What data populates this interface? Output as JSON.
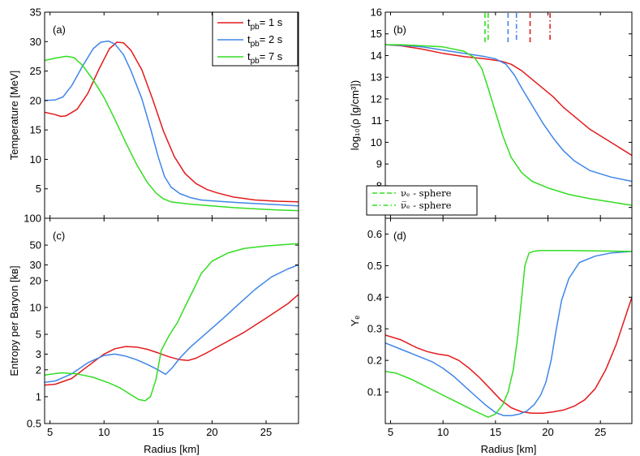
{
  "colors": {
    "t1": "#e41a1c",
    "t2": "#3f86e8",
    "t7": "#33dd22"
  },
  "legend": {
    "series": [
      {
        "prefix": "t",
        "sub": "pb",
        "suffix": "= 1 s",
        "color": "#e41a1c"
      },
      {
        "prefix": "t",
        "sub": "pb",
        "suffix": "= 2 s",
        "color": "#3f86e8"
      },
      {
        "prefix": "t",
        "sub": "pb",
        "suffix": "= 7 s",
        "color": "#33dd22"
      }
    ],
    "spheres": [
      {
        "label": "νₑ - sphere",
        "style": "dashed"
      },
      {
        "label": "ν̅ₑ - sphere",
        "style": "dashdot"
      }
    ]
  },
  "chart_data": [
    {
      "id": "a",
      "type": "line",
      "tag": "(a)",
      "xlabel": "",
      "ylabel": "Temperature [MeV]",
      "xlim": [
        4.5,
        28
      ],
      "ylim": [
        0,
        35
      ],
      "yscale": "linear",
      "xticks": [
        5,
        10,
        15,
        20,
        25
      ],
      "xticklabels": [],
      "yticks": [
        5,
        10,
        15,
        20,
        25,
        30,
        35
      ],
      "yticklabels": [
        "5",
        "10",
        "15",
        "20",
        "25",
        "30",
        "35"
      ],
      "series": [
        {
          "name": "t_pb = 1 s",
          "color": "#e41a1c",
          "x": [
            4.5,
            5.5,
            6,
            6.5,
            7.5,
            8.5,
            9.5,
            10.5,
            11.2,
            11.8,
            12.5,
            13.5,
            14.5,
            15.5,
            16.5,
            17.5,
            18.5,
            19.5,
            20.5,
            22,
            24,
            26,
            28
          ],
          "y": [
            18,
            17.6,
            17.3,
            17.4,
            18.5,
            21.2,
            25.2,
            28.8,
            29.9,
            29.8,
            28.5,
            25.2,
            20.2,
            14.8,
            10.5,
            7.6,
            5.9,
            4.9,
            4.3,
            3.6,
            3.1,
            2.9,
            2.8
          ]
        },
        {
          "name": "t_pb = 2 s",
          "color": "#3f86e8",
          "x": [
            4.5,
            5.5,
            6.2,
            7,
            8,
            9,
            9.7,
            10.4,
            11,
            11.8,
            12.5,
            13.5,
            14.3,
            15,
            15.6,
            16.2,
            17,
            18,
            19,
            20.5,
            22,
            24,
            26,
            28
          ],
          "y": [
            20,
            20.1,
            20.6,
            22.5,
            25.8,
            28.8,
            29.9,
            30.1,
            29.6,
            27.8,
            25,
            20.3,
            15.3,
            10.5,
            7.1,
            5.3,
            4.2,
            3.5,
            3.1,
            2.9,
            2.7,
            2.5,
            2.3,
            2.1
          ]
        },
        {
          "name": "t_pb = 7 s",
          "color": "#33dd22",
          "x": [
            4.5,
            5.5,
            6.5,
            7.2,
            8,
            9,
            10,
            11,
            12,
            13,
            14,
            14.8,
            15.5,
            16.2,
            17,
            18,
            20,
            22,
            24,
            26,
            28
          ],
          "y": [
            26.8,
            27.2,
            27.5,
            27.3,
            26,
            23.5,
            20.5,
            16.8,
            12.9,
            9.2,
            6.1,
            4.3,
            3.3,
            2.8,
            2.6,
            2.4,
            2.1,
            1.8,
            1.6,
            1.4,
            1.3
          ]
        }
      ]
    },
    {
      "id": "b",
      "type": "line",
      "tag": "(b)",
      "xlabel": "",
      "ylabel": "log₁₀(ρ [g/cm³])",
      "xlim": [
        4.5,
        28
      ],
      "ylim": [
        6.5,
        16
      ],
      "yscale": "linear",
      "xticks": [
        5,
        10,
        15,
        20,
        25
      ],
      "xticklabels": [],
      "yticks": [
        7,
        8,
        9,
        10,
        11,
        12,
        13,
        14,
        15,
        16
      ],
      "yticklabels": [
        "7",
        "8",
        "9",
        "10",
        "11",
        "12",
        "13",
        "14",
        "15",
        "16"
      ],
      "series": [
        {
          "name": "t_pb = 1 s",
          "color": "#e41a1c",
          "x": [
            4.5,
            6,
            8,
            10,
            12,
            14,
            15.5,
            16.5,
            17.5,
            18.5,
            19.5,
            20.5,
            21.5,
            22.5,
            24,
            26,
            28
          ],
          "y": [
            14.5,
            14.45,
            14.3,
            14.1,
            13.95,
            13.85,
            13.75,
            13.6,
            13.3,
            12.9,
            12.5,
            12.1,
            11.6,
            11.2,
            10.6,
            10.0,
            9.4
          ]
        },
        {
          "name": "t_pb = 2 s",
          "color": "#3f86e8",
          "x": [
            4.5,
            6,
            8,
            10,
            12,
            14,
            15,
            16,
            16.8,
            17.5,
            18.5,
            19.5,
            20.5,
            21.5,
            22.5,
            24,
            26,
            28
          ],
          "y": [
            14.5,
            14.47,
            14.4,
            14.25,
            14.1,
            13.95,
            13.85,
            13.6,
            13.1,
            12.5,
            11.7,
            10.9,
            10.2,
            9.6,
            9.15,
            8.7,
            8.4,
            8.2
          ]
        },
        {
          "name": "t_pb = 7 s",
          "color": "#33dd22",
          "x": [
            4.5,
            6,
            8,
            10,
            12,
            13,
            13.7,
            14.3,
            15,
            15.7,
            16.5,
            17.5,
            18.5,
            20,
            22,
            24,
            26,
            28
          ],
          "y": [
            14.5,
            14.5,
            14.45,
            14.4,
            14.2,
            13.9,
            13.4,
            12.5,
            11.4,
            10.3,
            9.3,
            8.6,
            8.2,
            7.9,
            7.6,
            7.4,
            7.25,
            7.1
          ]
        }
      ],
      "sphere_markers": [
        {
          "series": "t_pb = 7 s",
          "nu_e": 14.0,
          "nubar_e": 14.3,
          "color": "#33dd22"
        },
        {
          "series": "t_pb = 2 s",
          "nu_e": 16.2,
          "nubar_e": 17.0,
          "color": "#3f86e8"
        },
        {
          "series": "t_pb = 1 s",
          "nu_e": 18.3,
          "nubar_e": 20.2,
          "color": "#e41a1c"
        }
      ]
    },
    {
      "id": "c",
      "type": "line",
      "tag": "(c)",
      "xlabel": "Radius [km]",
      "ylabel": "Entropy per Baryon [kʙ]",
      "xlim": [
        4.5,
        28
      ],
      "ylim": [
        0.5,
        100
      ],
      "yscale": "log",
      "xticks": [
        5,
        10,
        15,
        20,
        25
      ],
      "xticklabels": [
        "5",
        "10",
        "15",
        "20",
        "25"
      ],
      "yticks": [
        0.5,
        1,
        2,
        3,
        5,
        10,
        20,
        30,
        50,
        100
      ],
      "yticklabels": [
        "0.5",
        "1",
        "2",
        "3",
        "5",
        "10",
        "20",
        "30",
        "50",
        "100"
      ],
      "series": [
        {
          "name": "t_pb = 1 s",
          "color": "#e41a1c",
          "x": [
            4.5,
            5.5,
            7,
            8.5,
            10,
            11,
            12,
            13,
            14,
            15,
            16,
            17,
            17.8,
            18.5,
            19.5,
            21,
            23,
            25,
            27,
            28
          ],
          "y": [
            1.35,
            1.38,
            1.6,
            2.2,
            3.0,
            3.45,
            3.65,
            3.6,
            3.4,
            3.1,
            2.8,
            2.6,
            2.55,
            2.7,
            3.1,
            3.9,
            5.3,
            7.6,
            11,
            14
          ]
        },
        {
          "name": "t_pb = 2 s",
          "color": "#3f86e8",
          "x": [
            4.5,
            5.5,
            7,
            8.5,
            10,
            11,
            12,
            13,
            14,
            15,
            15.7,
            16.3,
            17,
            18,
            19.5,
            21,
            22.5,
            24,
            25.5,
            27,
            28
          ],
          "y": [
            1.45,
            1.5,
            1.8,
            2.4,
            2.9,
            3.0,
            2.85,
            2.6,
            2.3,
            2.0,
            1.78,
            2.1,
            2.7,
            3.6,
            5.2,
            7.5,
            11,
            16,
            22,
            27,
            30
          ]
        },
        {
          "name": "t_pb = 7 s",
          "color": "#33dd22",
          "x": [
            4.5,
            6,
            7.5,
            9,
            10.5,
            11.5,
            12.5,
            13.2,
            13.8,
            14.3,
            14.8,
            15.3,
            16,
            16.8,
            17.5,
            18.3,
            19,
            20,
            21.5,
            23,
            25,
            28
          ],
          "y": [
            1.75,
            1.85,
            1.8,
            1.65,
            1.42,
            1.25,
            1.05,
            0.93,
            0.9,
            1.0,
            1.55,
            3.3,
            4.8,
            6.8,
            10.2,
            16,
            24,
            33,
            41,
            46,
            49,
            52
          ]
        }
      ]
    },
    {
      "id": "d",
      "type": "line",
      "tag": "(d)",
      "xlabel": "Radius [km]",
      "ylabel": "Yₑ",
      "xlim": [
        4.5,
        28
      ],
      "ylim": [
        0,
        0.65
      ],
      "yscale": "linear",
      "xticks": [
        5,
        10,
        15,
        20,
        25
      ],
      "xticklabels": [
        "5",
        "10",
        "15",
        "20",
        "25"
      ],
      "yticks": [
        0.1,
        0.2,
        0.3,
        0.4,
        0.5,
        0.6
      ],
      "yticklabels": [
        "0.1",
        "0.2",
        "0.3",
        "0.4",
        "0.5",
        "0.6"
      ],
      "series": [
        {
          "name": "t_pb = 1 s",
          "color": "#e41a1c",
          "x": [
            4.5,
            6,
            7.5,
            8.5,
            9.5,
            10.5,
            11.5,
            12.5,
            13.5,
            14.5,
            15.5,
            16.5,
            17.5,
            18.5,
            19.5,
            20.5,
            21.5,
            22.5,
            23.5,
            24.5,
            25.5,
            26.5,
            27.3,
            28
          ],
          "y": [
            0.28,
            0.265,
            0.24,
            0.228,
            0.22,
            0.215,
            0.2,
            0.175,
            0.145,
            0.11,
            0.075,
            0.05,
            0.037,
            0.033,
            0.033,
            0.037,
            0.043,
            0.055,
            0.075,
            0.11,
            0.17,
            0.25,
            0.33,
            0.4
          ]
        },
        {
          "name": "t_pb = 2 s",
          "color": "#3f86e8",
          "x": [
            4.5,
            6,
            7.5,
            9,
            10,
            11,
            12,
            13,
            14,
            15,
            15.8,
            16.5,
            17.3,
            18,
            18.7,
            19.3,
            19.8,
            20.3,
            20.8,
            21.3,
            22,
            23,
            24.5,
            26,
            28
          ],
          "y": [
            0.255,
            0.235,
            0.215,
            0.195,
            0.175,
            0.15,
            0.12,
            0.09,
            0.06,
            0.035,
            0.025,
            0.025,
            0.03,
            0.04,
            0.06,
            0.09,
            0.13,
            0.2,
            0.3,
            0.39,
            0.46,
            0.51,
            0.53,
            0.54,
            0.545
          ]
        },
        {
          "name": "t_pb = 7 s",
          "color": "#33dd22",
          "x": [
            4.5,
            5.5,
            7,
            8.5,
            10,
            11.5,
            13,
            14.3,
            15,
            15.7,
            16.2,
            16.7,
            17.1,
            17.5,
            17.8,
            18.2,
            18.6,
            19.2,
            20,
            22,
            24,
            26,
            28
          ],
          "y": [
            0.165,
            0.16,
            0.14,
            0.115,
            0.09,
            0.065,
            0.04,
            0.02,
            0.03,
            0.06,
            0.1,
            0.17,
            0.27,
            0.4,
            0.5,
            0.54,
            0.545,
            0.548,
            0.548,
            0.548,
            0.547,
            0.546,
            0.545
          ]
        }
      ]
    }
  ]
}
